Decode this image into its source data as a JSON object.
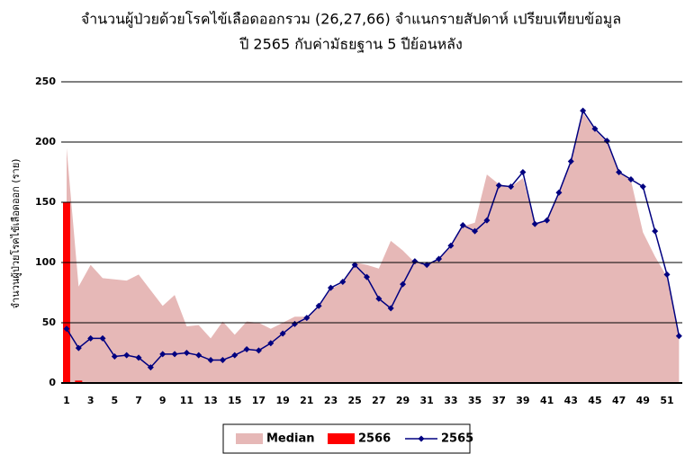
{
  "chart_data": {
    "type": "line",
    "title": [
      "จำนวนผู้ป่วยด้วยโรคไข้เลือดออกรวม (26,27,66) จำแนกรายสัปดาห์ เปรียบเทียบข้อมูล",
      "ปี 2565 กับค่ามัธยฐาน 5 ปีย้อนหลัง"
    ],
    "y_label": "จำนวนผู้ป่วยโรคไข้เลือดออก (ราย)",
    "categories": [
      1,
      null,
      3,
      null,
      5,
      null,
      7,
      null,
      9,
      null,
      11,
      null,
      13,
      null,
      15,
      null,
      17,
      null,
      19,
      null,
      21,
      null,
      23,
      null,
      25,
      null,
      27,
      null,
      29,
      null,
      31,
      null,
      33,
      null,
      35,
      null,
      37,
      null,
      39,
      null,
      41,
      null,
      43,
      null,
      45,
      null,
      47,
      null,
      49,
      null,
      51,
      null
    ],
    "series": [
      {
        "name": "Median",
        "type": "area",
        "color": "#e6b8b7",
        "values": [
          195,
          80,
          98,
          87,
          86,
          85,
          90,
          77,
          64,
          73,
          47,
          48,
          37,
          51,
          40,
          51,
          50,
          45,
          50,
          55,
          55,
          63,
          78,
          83,
          100,
          98,
          95,
          118,
          110,
          100,
          98,
          103,
          114,
          130,
          133,
          173,
          165,
          163,
          170,
          132,
          135,
          158,
          184,
          224,
          210,
          200,
          175,
          168,
          125,
          105,
          88,
          40
        ]
      },
      {
        "name": "2566",
        "type": "bar",
        "color": "#ff0000",
        "values": [
          150,
          2,
          null,
          null,
          null,
          null,
          null,
          null,
          null,
          null,
          null,
          null,
          null,
          null,
          null,
          null,
          null,
          null,
          null,
          null,
          null,
          null,
          null,
          null,
          null,
          null,
          null,
          null,
          null,
          null,
          null,
          null,
          null,
          null,
          null,
          null,
          null,
          null,
          null,
          null,
          null,
          null,
          null,
          null,
          null,
          null,
          null,
          null,
          null,
          null,
          null,
          null
        ]
      },
      {
        "name": "2565",
        "type": "line",
        "color": "#000080",
        "values": [
          45,
          29,
          37,
          37,
          22,
          23,
          21,
          13,
          24,
          24,
          25,
          23,
          19,
          19,
          23,
          28,
          27,
          33,
          41,
          49,
          54,
          64,
          79,
          84,
          98,
          88,
          70,
          62,
          82,
          101,
          98,
          103,
          114,
          131,
          126,
          135,
          164,
          163,
          175,
          132,
          135,
          158,
          184,
          226,
          211,
          201,
          175,
          169,
          163,
          126,
          90,
          39
        ]
      }
    ],
    "ylim": [
      0,
      250
    ],
    "yticks": [
      0,
      50,
      100,
      150,
      200,
      250
    ],
    "grid": true
  }
}
